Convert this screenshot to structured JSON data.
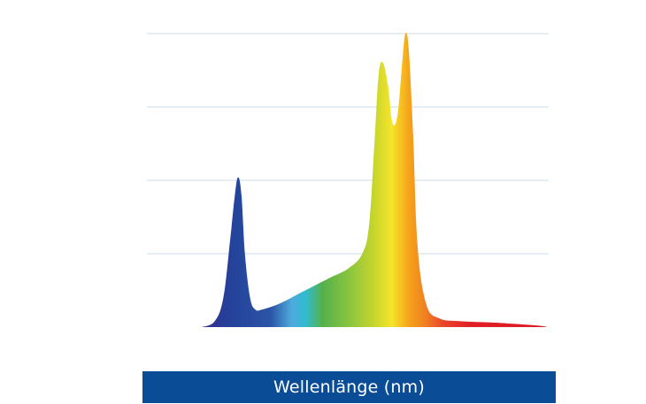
{
  "chart_data": {
    "type": "area",
    "title": "",
    "xlabel": "Wellenlänge (nm)",
    "ylabel": "",
    "grid": true,
    "legend": "none",
    "xlim": [
      380,
      780
    ],
    "ylim": [
      0,
      100
    ],
    "y_gridlines": [
      25,
      50,
      75,
      100
    ],
    "series": [
      {
        "x": [
          380,
          395,
          405,
          413,
          418,
          422,
          426,
          430,
          436,
          442,
          450,
          470,
          490,
          510,
          530,
          550,
          566,
          574,
          580,
          585,
          590,
          596,
          600,
          604,
          608,
          612,
          616,
          620,
          625,
          630,
          640,
          655,
          680,
          720,
          770,
          780
        ],
        "values": [
          0,
          2,
          10,
          30,
          44,
          51,
          45,
          25,
          10,
          6,
          6,
          8,
          11,
          14,
          17,
          20,
          25,
          35,
          62,
          86,
          90,
          82,
          71,
          69,
          75,
          89,
          100,
          94,
          65,
          28,
          8,
          3,
          2,
          1.5,
          0.5,
          0
        ]
      }
    ],
    "gradient_colors": [
      "#33318f",
      "#24449c",
      "#2c55a6",
      "#4fa9dc",
      "#30bcd1",
      "#55b04b",
      "#8cc63f",
      "#c8d52c",
      "#f5e52a",
      "#f6a31a",
      "#f07e22",
      "#e9452a",
      "#e11f27",
      "#d91c22"
    ],
    "grid_color": "#cbdcea",
    "label_bar_color": "#0a4d96",
    "label_text_color": "#ffffff"
  }
}
